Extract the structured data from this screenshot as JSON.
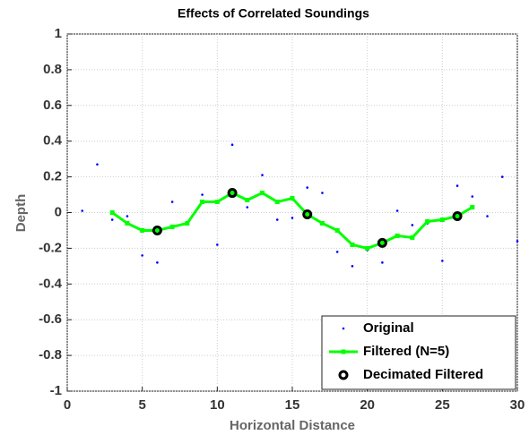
{
  "chart_data": {
    "type": "line",
    "title": "Effects of Correlated Soundings",
    "x_label": "Horizontal Distance",
    "y_label": "Depth",
    "xlim": [
      0,
      30
    ],
    "xticks": [
      0,
      5,
      10,
      15,
      20,
      25,
      30
    ],
    "ylim": [
      -1,
      1
    ],
    "yticks": [
      -1,
      -0.8,
      -0.6,
      -0.4,
      -0.2,
      0,
      0.2,
      0.4,
      0.6,
      0.8,
      1
    ],
    "grid": true,
    "legend": "lower right",
    "series": [
      {
        "name": "Original",
        "color": "#0000ff",
        "mode": "points",
        "x": [
          1,
          2,
          3,
          4,
          5,
          6,
          7,
          8,
          9,
          10,
          11,
          12,
          13,
          14,
          15,
          16,
          17,
          18,
          19,
          20,
          21,
          22,
          23,
          24,
          25,
          26,
          27,
          28,
          29,
          30
        ],
        "values": [
          0.01,
          0.27,
          -0.04,
          -0.02,
          -0.24,
          -0.28,
          0.06,
          -0.06,
          0.1,
          -0.18,
          0.38,
          0.03,
          0.21,
          -0.04,
          -0.03,
          0.14,
          0.11,
          -0.22,
          -0.3,
          -0.21,
          -0.28,
          0.01,
          -0.07,
          -0.06,
          -0.27,
          0.15,
          0.09,
          -0.02,
          0.2,
          -0.16
        ]
      },
      {
        "name": "Filtered (N=5)",
        "color": "#00ff00",
        "mode": "line",
        "x": [
          3,
          4,
          5,
          6,
          7,
          8,
          9,
          10,
          11,
          12,
          13,
          14,
          15,
          16,
          17,
          18,
          19,
          20,
          21,
          22,
          23,
          24,
          25,
          26,
          27
        ],
        "values": [
          0.0,
          -0.06,
          -0.1,
          -0.1,
          -0.08,
          -0.06,
          0.06,
          0.06,
          0.11,
          0.07,
          0.11,
          0.06,
          0.08,
          -0.01,
          -0.06,
          -0.1,
          -0.18,
          -0.2,
          -0.17,
          -0.13,
          -0.14,
          -0.05,
          -0.04,
          -0.02,
          0.03
        ]
      },
      {
        "name": "Decimated Filtered",
        "color": "#000000",
        "mode": "circles",
        "x": [
          6,
          11,
          16,
          21,
          26
        ],
        "values": [
          -0.1,
          0.11,
          -0.01,
          -0.17,
          -0.02
        ]
      }
    ]
  }
}
